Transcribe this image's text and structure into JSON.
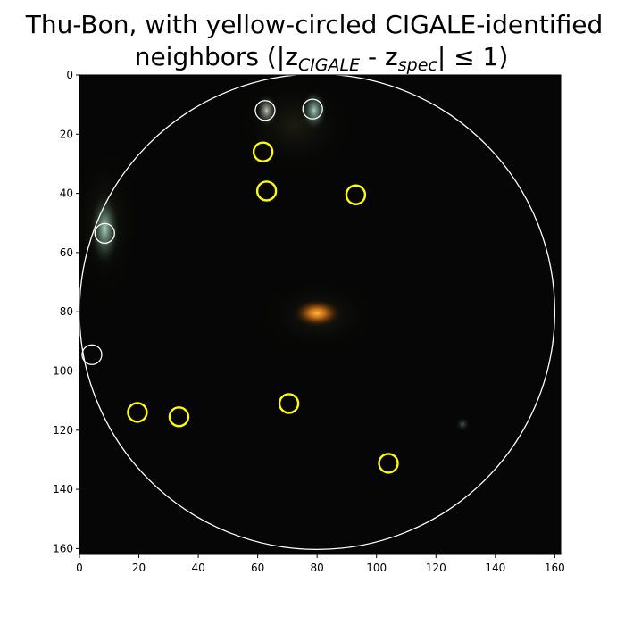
{
  "chart_data": {
    "type": "image",
    "title": {
      "line1": "Thu-Bon, with yellow-circled CIGALE-identified",
      "line2_prefix": "neighbors (|z",
      "line2_sub1": "CIGALE",
      "line2_mid": " - z",
      "line2_sub2": "spec",
      "line2_suffix": "| ≤ 1)"
    },
    "xlim": [
      0,
      162
    ],
    "ylim": [
      162,
      0
    ],
    "x_ticks": [
      0,
      20,
      40,
      60,
      80,
      100,
      120,
      140,
      160
    ],
    "y_ticks": [
      0,
      20,
      40,
      60,
      80,
      100,
      120,
      140,
      160
    ],
    "big_circle": {
      "cx": 80,
      "cy": 80,
      "r": 80,
      "color": "#ffffff"
    },
    "white_circles": [
      {
        "x": 62.5,
        "y": 12
      },
      {
        "x": 78.5,
        "y": 11.5
      },
      {
        "x": 8.5,
        "y": 53.5
      },
      {
        "x": 4.2,
        "y": 94.5
      }
    ],
    "yellow_circles": [
      {
        "x": 61.8,
        "y": 26
      },
      {
        "x": 63,
        "y": 39.2
      },
      {
        "x": 93,
        "y": 40.5
      },
      {
        "x": 19.5,
        "y": 114
      },
      {
        "x": 33.5,
        "y": 115.5
      },
      {
        "x": 70.5,
        "y": 111
      },
      {
        "x": 104,
        "y": 131.2
      }
    ],
    "sources": [
      {
        "x": 80,
        "y": 80.5,
        "color": "#ff9a2a",
        "label": "central-galaxy"
      },
      {
        "x": 8.5,
        "y": 52,
        "color": "#9fc6b5",
        "label": "left-galaxy"
      },
      {
        "x": 79,
        "y": 12,
        "color": "#9fb8b0",
        "label": "top-galaxy-a"
      },
      {
        "x": 63,
        "y": 12,
        "color": "#bcbcb2",
        "label": "top-galaxy-b"
      },
      {
        "x": 129,
        "y": 118,
        "color": "#5a6a60",
        "label": "faint-source"
      }
    ],
    "colors": {
      "background": "#050605",
      "white_circle": "#ffffff",
      "yellow_circle": "#ffff00"
    }
  }
}
